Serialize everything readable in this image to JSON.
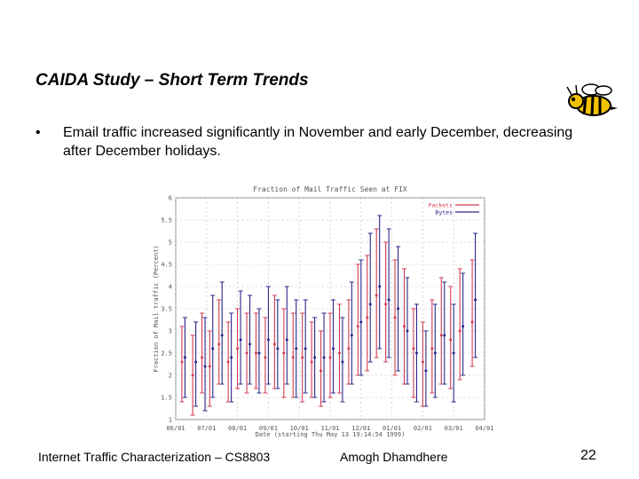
{
  "slide": {
    "title": "CAIDA Study – Short Term Trends",
    "bullet_marker": "•",
    "bullet_text": "Email traffic increased significantly in November and early December, decreasing after December holidays.",
    "footer_left": "Internet Traffic Characterization – CS8803",
    "footer_center": "Amogh Dhamdhere",
    "page_number": "22",
    "logo_icon": "bee-mascot-icon"
  },
  "chart_data": {
    "type": "line",
    "title": "Fraction of Mail Traffic Seen at FIX",
    "xlabel": "Date (starting Thu May 13 19:14:54 1999)",
    "ylabel": "Fraction of Mail traffic (Percent)",
    "x_tick_labels": [
      "06/01",
      "07/01",
      "08/01",
      "09/01",
      "10/01",
      "11/01",
      "12/01",
      "01/01",
      "02/01",
      "03/01",
      "04/01"
    ],
    "y_tick_labels": [
      "1",
      "1.5",
      "2",
      "2.5",
      "3",
      "3.5",
      "4",
      "4.5",
      "5",
      "5.5",
      "6"
    ],
    "ylim": [
      1,
      6
    ],
    "legend": [
      "Packets",
      "Bytes"
    ],
    "legend_position": "top-right",
    "colors": {
      "packets": "#d23c50",
      "bytes": "#28288c",
      "grid": "#bbbbbb",
      "text": "#555555"
    },
    "series": [
      {
        "name": "Packets",
        "x": [
          0.2,
          0.55,
          0.85,
          1.1,
          1.4,
          1.7,
          2.0,
          2.3,
          2.6,
          2.9,
          3.2,
          3.5,
          3.8,
          4.1,
          4.4,
          4.7,
          5.0,
          5.3,
          5.6,
          5.9,
          6.2,
          6.5,
          6.8,
          7.1,
          7.4,
          7.7,
          8.0,
          8.3,
          8.6,
          8.9,
          9.2,
          9.6
        ],
        "mean": [
          2.3,
          2.0,
          2.4,
          2.2,
          2.7,
          2.3,
          2.6,
          2.5,
          2.5,
          2.4,
          2.7,
          2.5,
          2.4,
          2.4,
          2.3,
          2.1,
          2.4,
          2.5,
          2.6,
          3.1,
          3.3,
          3.8,
          3.6,
          3.3,
          3.1,
          2.6,
          2.3,
          2.6,
          2.9,
          2.8,
          3.0,
          3.2
        ],
        "low": [
          1.4,
          1.1,
          1.6,
          1.3,
          1.8,
          1.4,
          1.7,
          1.6,
          1.7,
          1.6,
          1.7,
          1.5,
          1.5,
          1.4,
          1.5,
          1.3,
          1.5,
          1.6,
          1.8,
          2.0,
          2.1,
          2.4,
          2.3,
          2.0,
          1.8,
          1.5,
          1.3,
          1.6,
          1.8,
          1.7,
          1.9,
          2.2
        ],
        "high": [
          3.1,
          2.9,
          3.4,
          3.0,
          3.7,
          3.2,
          3.5,
          3.4,
          3.4,
          3.3,
          3.8,
          3.5,
          3.4,
          3.4,
          3.2,
          3.0,
          3.4,
          3.6,
          3.7,
          4.5,
          4.7,
          5.3,
          5.0,
          4.6,
          4.4,
          3.5,
          3.2,
          3.7,
          4.2,
          4.0,
          4.4,
          4.6
        ]
      },
      {
        "name": "Bytes",
        "x": [
          0.3,
          0.65,
          0.95,
          1.2,
          1.5,
          1.8,
          2.1,
          2.4,
          2.7,
          3.0,
          3.3,
          3.6,
          3.9,
          4.2,
          4.5,
          4.8,
          5.1,
          5.4,
          5.7,
          6.0,
          6.3,
          6.6,
          6.9,
          7.2,
          7.5,
          7.8,
          8.1,
          8.4,
          8.7,
          9.0,
          9.3,
          9.7
        ],
        "mean": [
          2.4,
          2.3,
          2.2,
          2.6,
          2.9,
          2.4,
          2.8,
          2.7,
          2.5,
          2.8,
          2.6,
          2.8,
          2.6,
          2.6,
          2.4,
          2.4,
          2.6,
          2.3,
          2.9,
          3.2,
          3.6,
          4.0,
          3.7,
          3.5,
          3.0,
          2.5,
          2.1,
          2.5,
          2.9,
          2.5,
          3.1,
          3.7
        ],
        "low": [
          1.5,
          1.3,
          1.2,
          1.5,
          1.8,
          1.4,
          1.8,
          1.8,
          1.6,
          1.8,
          1.7,
          1.8,
          1.5,
          1.6,
          1.5,
          1.4,
          1.6,
          1.4,
          1.8,
          2.0,
          2.3,
          2.6,
          2.4,
          2.1,
          1.8,
          1.4,
          1.3,
          1.5,
          1.8,
          1.4,
          2.0,
          2.4
        ],
        "high": [
          3.3,
          3.2,
          3.3,
          3.8,
          4.1,
          3.4,
          3.9,
          3.8,
          3.5,
          4.0,
          3.7,
          4.0,
          3.7,
          3.7,
          3.3,
          3.4,
          3.7,
          3.3,
          4.1,
          4.6,
          5.2,
          5.6,
          5.3,
          4.9,
          4.2,
          3.6,
          3.0,
          3.6,
          4.1,
          3.6,
          4.3,
          5.2
        ]
      }
    ]
  }
}
